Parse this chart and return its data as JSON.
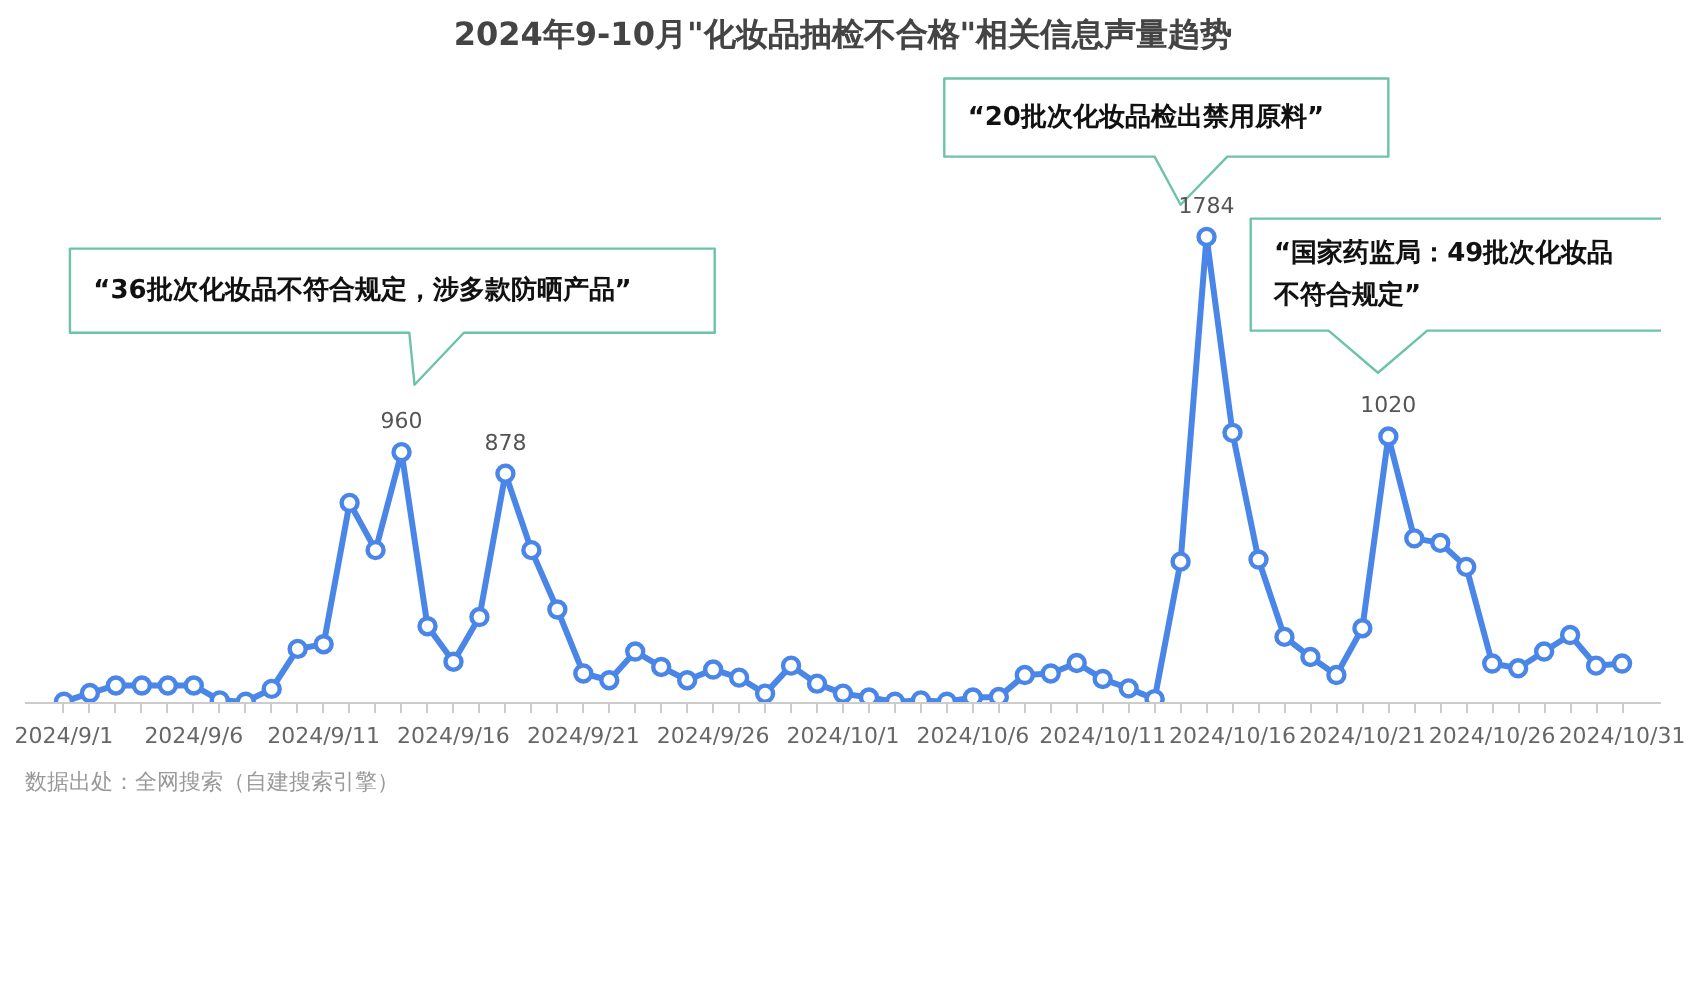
{
  "chart_data": {
    "type": "line",
    "title": "2024年9-10月\"化妆品抽检不合格\"相关信息声量趋势",
    "categories": [
      "2024/9/1",
      null,
      null,
      null,
      null,
      "2024/9/6",
      null,
      null,
      null,
      null,
      "2024/9/11",
      null,
      null,
      null,
      null,
      "2024/9/16",
      null,
      null,
      null,
      null,
      "2024/9/21",
      null,
      null,
      null,
      null,
      "2024/9/26",
      null,
      null,
      null,
      null,
      "2024/10/1",
      null,
      null,
      null,
      null,
      "2024/10/6",
      null,
      null,
      null,
      null,
      "2024/10/11",
      null,
      null,
      null,
      null,
      "2024/10/16",
      null,
      null,
      null,
      null,
      "2024/10/21",
      null,
      null,
      null,
      null,
      "2024/10/26",
      null,
      null,
      null,
      null,
      "2024/10/31"
    ],
    "values": [
      5,
      38,
      67,
      67,
      67,
      67,
      10,
      5,
      54,
      207,
      225,
      766,
      585,
      960,
      294,
      158,
      329,
      878,
      585,
      358,
      113,
      87,
      197,
      138,
      87,
      128,
      97,
      36,
      143,
      74,
      36,
      21,
      5,
      10,
      5,
      21,
      23,
      107,
      113,
      153,
      92,
      56,
      15,
      541,
      1784,
      1034,
      549,
      253,
      176,
      107,
      286,
      1020,
      630,
      613,
      521,
      151,
      133,
      197,
      260,
      143,
      151
    ],
    "value_labels": [
      null,
      null,
      null,
      null,
      null,
      null,
      null,
      null,
      null,
      null,
      null,
      null,
      null,
      "960",
      null,
      null,
      null,
      "878",
      null,
      null,
      null,
      null,
      null,
      null,
      null,
      null,
      null,
      null,
      null,
      null,
      null,
      null,
      null,
      null,
      null,
      null,
      null,
      null,
      null,
      null,
      null,
      null,
      null,
      null,
      "1784",
      null,
      null,
      null,
      null,
      null,
      null,
      "1020",
      null,
      null,
      null,
      null,
      null,
      null,
      null,
      null,
      null
    ],
    "color": "#4a86e8",
    "marker": "circle",
    "line_style": "solid",
    "tick_labels": "x",
    "annotations": [
      "“36批次化妆品不符合规定，涉多款防晒产品”",
      "“20批次化妆品检出禁用原料”",
      "“国家药监局：49批次化妆品不符合规定”",
      "数据出处：全网搜索（自建搜索引擎）"
    ]
  }
}
